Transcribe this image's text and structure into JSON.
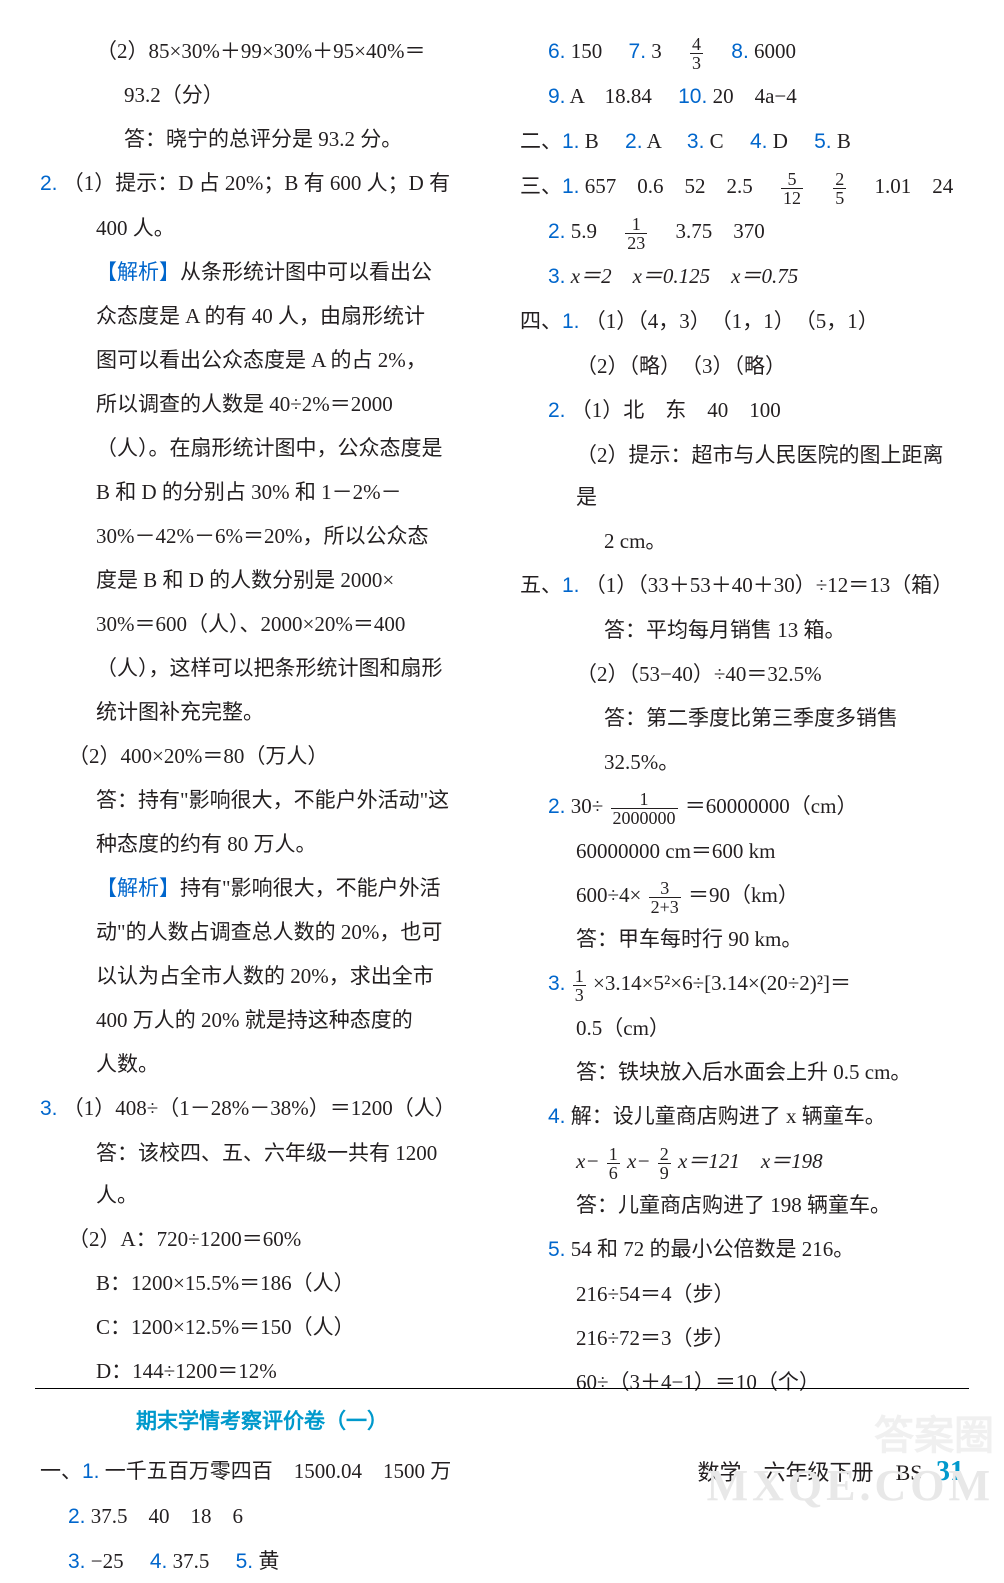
{
  "colors": {
    "text": "#231f20",
    "link_blue": "#0066cc",
    "title_teal": "#0099cc",
    "background": "#ffffff",
    "watermark": "#e8e8e8"
  },
  "typography": {
    "body_fontsize": 21,
    "line_height": 2.0,
    "font_family": "SimSun"
  },
  "left": {
    "l1": "（2）85×30%＋99×30%＋95×40%＝",
    "l2": "93.2（分）",
    "l3": "答：晓宁的总评分是 93.2 分。",
    "q2": "2.",
    "l4": "（1）提示：D 占 20%；B 有 600 人；D 有",
    "l5": "400 人。",
    "ana1": "【解析】",
    "l6": "从条形统计图中可以看出公",
    "l7": "众态度是 A 的有 40 人，由扇形统计",
    "l8": "图可以看出公众态度是 A 的占 2%，",
    "l9": "所以调查的人数是 40÷2%＝2000",
    "l10": "（人）。在扇形统计图中，公众态度是",
    "l11": "B 和 D 的分别占 30% 和 1－2%－",
    "l12": "30%－42%－6%＝20%，所以公众态",
    "l13": "度是 B 和 D 的人数分别是 2000×",
    "l14": "30%＝600（人）、2000×20%＝400",
    "l15": "（人），这样可以把条形统计图和扇形",
    "l16": "统计图补充完整。",
    "l17": "（2）400×20%＝80（万人）",
    "l18": "答：持有\"影响很大，不能户外活动\"这",
    "l19": "种态度的约有 80 万人。",
    "ana2": "【解析】",
    "l20": "持有\"影响很大，不能户外活",
    "l21": "动\"的人数占调查总人数的 20%，也可",
    "l22": "以认为占全市人数的 20%，求出全市",
    "l23": "400 万人的 20% 就是持这种态度的",
    "l24": "人数。",
    "q3": "3.",
    "l25": "（1）408÷（1－28%－38%）＝1200（人）",
    "l26": "答：该校四、五、六年级一共有 1200 人。",
    "l27": "（2）A：720÷1200＝60%",
    "l28": "B：1200×15.5%＝186（人）",
    "l29": "C：1200×12.5%＝150（人）",
    "l30": "D：144÷1200＝12%",
    "title": "期末学情考察评价卷（一）",
    "s1": "一、",
    "q1b": "1.",
    "l31": "一千五百万零四百　1500.04　1500 万",
    "q2b": "2.",
    "l32": "37.5　40　18　6",
    "q3b": "3.",
    "l33": "−25",
    "q4b": "4.",
    "l34": "37.5",
    "q5b": "5.",
    "l35": "黄"
  },
  "right": {
    "q6": "6.",
    "r1": "150",
    "q7": "7.",
    "r2": "3　",
    "frac1n": "4",
    "frac1d": "3",
    "q8": "8.",
    "r3": "6000",
    "q9": "9.",
    "r4": "A　18.84",
    "q10": "10.",
    "r5": "20　4a−4",
    "s2": "二、",
    "b1": "1.",
    "bv1": "B",
    "b2": "2.",
    "bv2": "A",
    "b3": "3.",
    "bv3": "C",
    "b4": "4.",
    "bv4": "D",
    "b5": "5.",
    "bv5": "B",
    "s3": "三、",
    "c1": "1.",
    "r6a": "657　0.6　52　2.5　",
    "frac2n": "5",
    "frac2d": "12",
    "frac3n": "2",
    "frac3d": "5",
    "r6b": "　1.01　24",
    "c2": "2.",
    "r7a": "5.9　",
    "frac4n": "1",
    "frac4d": "23",
    "r7b": "　3.75　370",
    "c3": "3.",
    "r8": "x＝2　x＝0.125　x＝0.75",
    "s4": "四、",
    "d1": "1.",
    "r9": "（1）（4，3）　（1，1）　（5，1）",
    "r10": "（2）（略）　（3）（略）",
    "d2": "2.",
    "r11": "（1）北　东　40　100",
    "r12": "（2）提示：超市与人民医院的图上距离是",
    "r13": "2 cm。",
    "s5": "五、",
    "e1": "1.",
    "r14": "（1）（33＋53＋40＋30）÷12＝13（箱）",
    "r15": "答：平均每月销售 13 箱。",
    "r16": "（2）（53−40）÷40＝32.5%",
    "r17": "答：第二季度比第三季度多销售",
    "r18": "32.5%。",
    "e2": "2.",
    "r19a": "30÷",
    "frac5n": "1",
    "frac5d": "2000000",
    "r19b": "＝60000000（cm）",
    "r20": "60000000 cm＝600 km",
    "r21a": "600÷4×",
    "frac6n": "3",
    "frac6d": "2+3",
    "r21b": "＝90（km）",
    "r22": "答：甲车每时行 90 km。",
    "e3": "3.",
    "frac7n": "1",
    "frac7d": "3",
    "r23": "×3.14×5²×6÷[3.14×(20÷2)²]＝",
    "r24": "0.5（cm）",
    "r25": "答：铁块放入后水面会上升 0.5 cm。",
    "e4": "4.",
    "r26": "解：设儿童商店购进了 x 辆童车。",
    "r27a": "x−",
    "frac8n": "1",
    "frac8d": "6",
    "r27b": "x−",
    "frac9n": "2",
    "frac9d": "9",
    "r27c": "x＝121　x＝198",
    "r28": "答：儿童商店购进了 198 辆童车。",
    "e5": "5.",
    "r29": "54 和 72 的最小公倍数是 216。",
    "r30": "216÷54＝4（步）",
    "r31": "216÷72＝3（步）",
    "r32": "60÷（3＋4−1）＝10（个）"
  },
  "footer": {
    "subject": "数学",
    "grade": "六年级下册",
    "edition": "BS",
    "page": "31"
  },
  "watermark": "MXQE.COM",
  "watermark2": "答案圈"
}
